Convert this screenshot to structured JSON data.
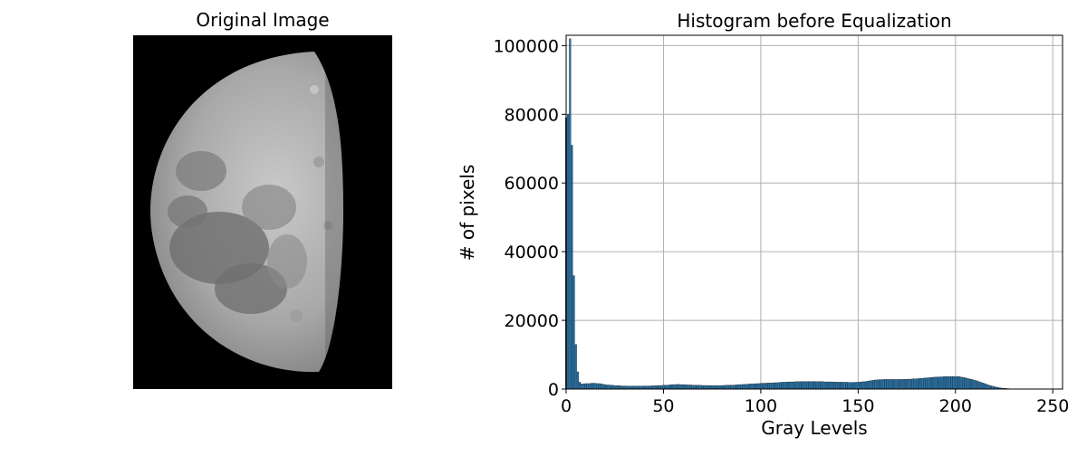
{
  "left_panel": {
    "title": "Original Image",
    "image_icon": "moon-photo"
  },
  "chart_data": {
    "type": "bar",
    "title": "Histogram before Equalization",
    "xlabel": "Gray Levels",
    "ylabel": "# of pixels",
    "xlim": [
      0,
      255
    ],
    "ylim": [
      0,
      103000
    ],
    "xticks": [
      0,
      50,
      100,
      150,
      200,
      250
    ],
    "yticks": [
      0,
      20000,
      40000,
      60000,
      80000,
      100000
    ],
    "grid": true,
    "bar_color": "#1f77b4",
    "x_start": 0,
    "values": [
      79000,
      80000,
      102000,
      71000,
      33000,
      13000,
      5000,
      2000,
      1500,
      1500,
      1600,
      1600,
      1600,
      1700,
      1700,
      1700,
      1600,
      1600,
      1500,
      1400,
      1300,
      1200,
      1200,
      1100,
      1100,
      1000,
      1000,
      1000,
      950,
      900,
      900,
      900,
      850,
      850,
      850,
      850,
      850,
      850,
      850,
      850,
      900,
      900,
      900,
      900,
      950,
      950,
      1000,
      1000,
      1000,
      1050,
      1100,
      1100,
      1150,
      1200,
      1250,
      1300,
      1300,
      1350,
      1350,
      1300,
      1300,
      1250,
      1250,
      1200,
      1200,
      1150,
      1150,
      1100,
      1100,
      1100,
      1050,
      1050,
      1050,
      1000,
      1000,
      1000,
      1000,
      1000,
      1000,
      1000,
      1050,
      1050,
      1100,
      1100,
      1100,
      1150,
      1150,
      1200,
      1250,
      1300,
      1300,
      1350,
      1400,
      1400,
      1450,
      1500,
      1500,
      1550,
      1600,
      1600,
      1650,
      1700,
      1700,
      1750,
      1750,
      1800,
      1800,
      1850,
      1850,
      1900,
      1950,
      2000,
      2000,
      2050,
      2050,
      2100,
      2100,
      2100,
      2150,
      2150,
      2150,
      2150,
      2200,
      2200,
      2200,
      2200,
      2200,
      2200,
      2200,
      2150,
      2150,
      2150,
      2150,
      2100,
      2100,
      2100,
      2100,
      2050,
      2050,
      2050,
      2000,
      2000,
      2000,
      2000,
      2000,
      1950,
      1950,
      1950,
      1950,
      2000,
      2000,
      2050,
      2100,
      2150,
      2200,
      2300,
      2400,
      2500,
      2600,
      2650,
      2700,
      2750,
      2750,
      2800,
      2800,
      2800,
      2800,
      2800,
      2800,
      2800,
      2800,
      2800,
      2800,
      2850,
      2850,
      2850,
      2900,
      2900,
      2950,
      3000,
      3000,
      3050,
      3100,
      3150,
      3200,
      3250,
      3300,
      3350,
      3400,
      3450,
      3500,
      3500,
      3550,
      3550,
      3600,
      3600,
      3650,
      3650,
      3650,
      3650,
      3650,
      3600,
      3600,
      3500,
      3400,
      3300,
      3150,
      3000,
      2850,
      2700,
      2550,
      2400,
      2200,
      2000,
      1800,
      1600,
      1400,
      1200,
      1000,
      850,
      700,
      550,
      450,
      350,
      280,
      220,
      170,
      130,
      100,
      80,
      60,
      50,
      40,
      35,
      30,
      25,
      20,
      20,
      15,
      15,
      10,
      10,
      10,
      8,
      8,
      6,
      6,
      5,
      5,
      4,
      4,
      3,
      3,
      2,
      2,
      1
    ]
  }
}
